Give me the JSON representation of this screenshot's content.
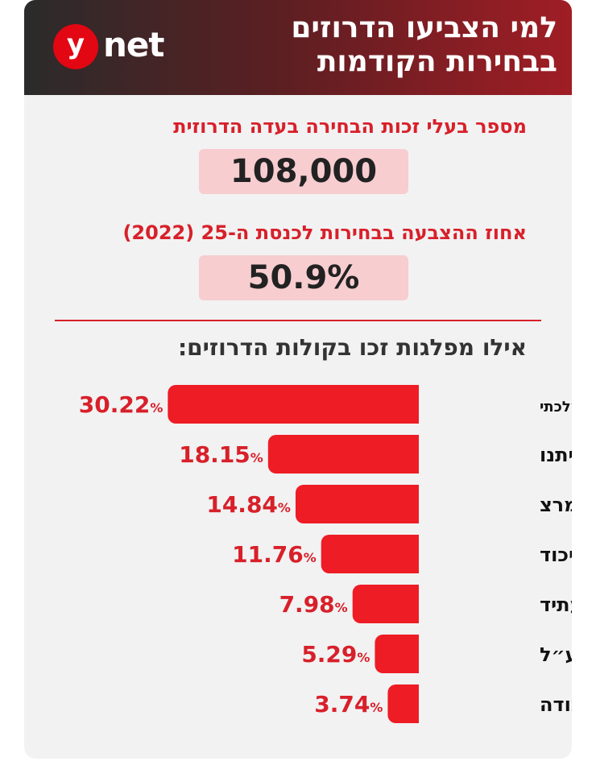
{
  "header": {
    "title_line1": "למי הצביעו הדרוזים",
    "title_line2": "בבחירות הקודמות",
    "logo_y": "y",
    "logo_net": "net"
  },
  "stats": {
    "voters_label": "מספר בעלי זכות הבחירה בעדה הדרוזית",
    "voters_value": "108,000",
    "turnout_label": "אחוז ההצבעה בבחירות לכנסת ה-25 (2022)",
    "turnout_value": "50.9%"
  },
  "section_title": "אילו מפלגות זכו בקולות הדרוזים:",
  "colors": {
    "bar": "#ee1c25",
    "accent": "#d8202a",
    "box": "#f7cdd0"
  },
  "chart_data": {
    "type": "bar",
    "orientation": "horizontal",
    "unit": "%",
    "categories": [
      "המחנה הממלכתי",
      "ישראל ביתנו",
      "מרצ",
      "הליכוד",
      "יש עתיד",
      "חד״ש תע״ל",
      "העבודה"
    ],
    "values": [
      30.22,
      18.15,
      14.84,
      11.76,
      7.98,
      5.29,
      3.74
    ],
    "labels": [
      "30.22",
      "18.15",
      "14.84",
      "11.76",
      "7.98",
      "5.29",
      "3.74"
    ],
    "xlim": [
      0,
      32
    ]
  }
}
